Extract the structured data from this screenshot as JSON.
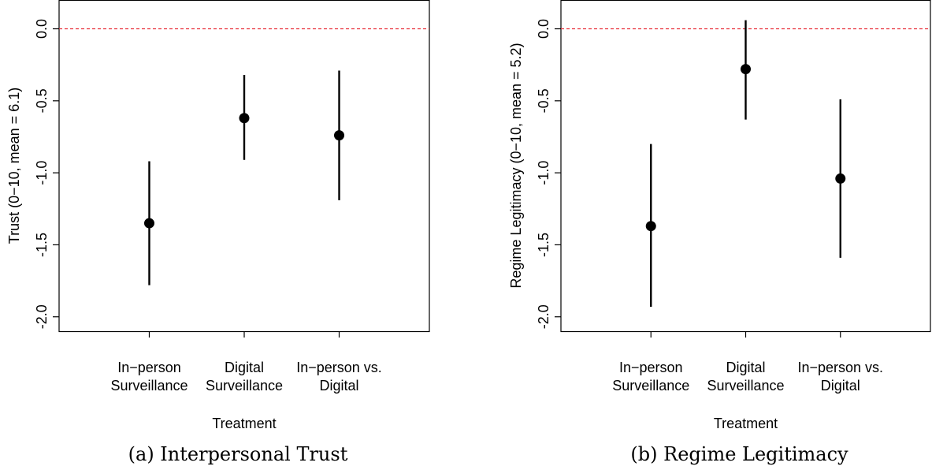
{
  "chart_data": [
    {
      "type": "scatter",
      "subtitle": "(a) Interpersonal Trust",
      "xlabel": "Treatment",
      "ylabel": "Trust (0−10, mean = 6.1)",
      "ylim": [
        -2.1,
        0.2
      ],
      "yticks": [
        0.0,
        -0.5,
        -1.0,
        -1.5,
        -2.0
      ],
      "ytick_labels": [
        "0.0",
        "-0.5",
        "-1.0",
        "-1.5",
        "-2.0"
      ],
      "reference_line": {
        "y": 0,
        "color": "#e8303a",
        "style": "dashed"
      },
      "categories": [
        [
          "In−person",
          "Surveillance"
        ],
        [
          "Digital",
          "Surveillance"
        ],
        [
          "In−person vs.",
          "Digital"
        ]
      ],
      "points": [
        {
          "estimate": -1.35,
          "lower": -1.78,
          "upper": -0.92
        },
        {
          "estimate": -0.62,
          "lower": -0.91,
          "upper": -0.32
        },
        {
          "estimate": -0.74,
          "lower": -1.19,
          "upper": -0.29
        }
      ]
    },
    {
      "type": "scatter",
      "subtitle": "(b) Regime Legitimacy",
      "xlabel": "Treatment",
      "ylabel": "Regime Legitimacy (0−10, mean = 5.2)",
      "ylim": [
        -2.1,
        0.2
      ],
      "yticks": [
        0.0,
        -0.5,
        -1.0,
        -1.5,
        -2.0
      ],
      "ytick_labels": [
        "0.0",
        "-0.5",
        "-1.0",
        "-1.5",
        "-2.0"
      ],
      "reference_line": {
        "y": 0,
        "color": "#e8303a",
        "style": "dashed"
      },
      "categories": [
        [
          "In−person",
          "Surveillance"
        ],
        [
          "Digital",
          "Surveillance"
        ],
        [
          "In−person vs.",
          "Digital"
        ]
      ],
      "points": [
        {
          "estimate": -1.37,
          "lower": -1.93,
          "upper": -0.8
        },
        {
          "estimate": -0.28,
          "lower": -0.63,
          "upper": 0.06
        },
        {
          "estimate": -1.04,
          "lower": -1.59,
          "upper": -0.49
        }
      ]
    }
  ]
}
